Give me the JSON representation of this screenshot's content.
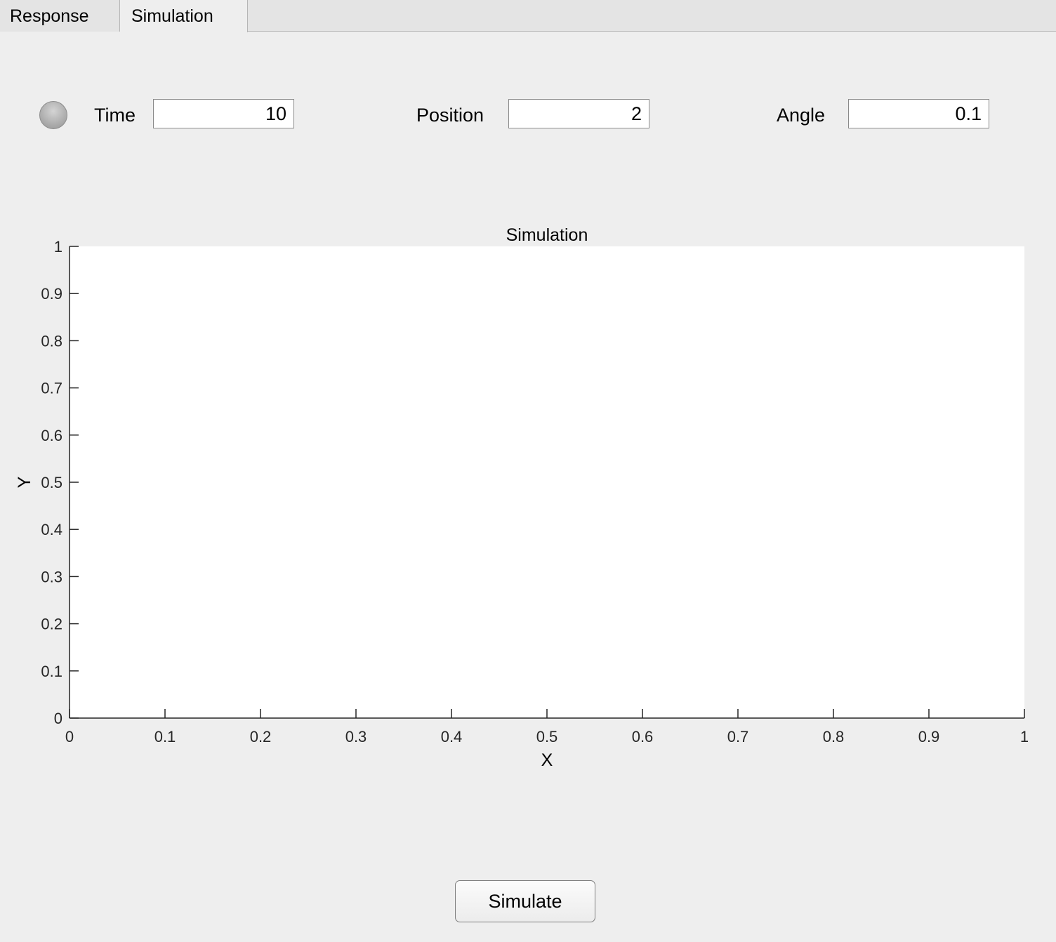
{
  "tabs": [
    {
      "label": "Response",
      "active": false
    },
    {
      "label": "Simulation",
      "active": true
    }
  ],
  "controls": {
    "lamp_color": "#b0b0b0",
    "time": {
      "label": "Time",
      "value": "10"
    },
    "position": {
      "label": "Position",
      "value": "2"
    },
    "angle": {
      "label": "Angle",
      "value": "0.1"
    }
  },
  "chart_data": {
    "type": "line",
    "title": "Simulation",
    "xlabel": "X",
    "ylabel": "Y",
    "xlim": [
      0,
      1
    ],
    "ylim": [
      0,
      1
    ],
    "xticks": [
      "0",
      "0.1",
      "0.2",
      "0.3",
      "0.4",
      "0.5",
      "0.6",
      "0.7",
      "0.8",
      "0.9",
      "1"
    ],
    "yticks": [
      "0",
      "0.1",
      "0.2",
      "0.3",
      "0.4",
      "0.5",
      "0.6",
      "0.7",
      "0.8",
      "0.9",
      "1"
    ],
    "grid": false,
    "series": []
  },
  "simulate_button": {
    "label": "Simulate"
  }
}
